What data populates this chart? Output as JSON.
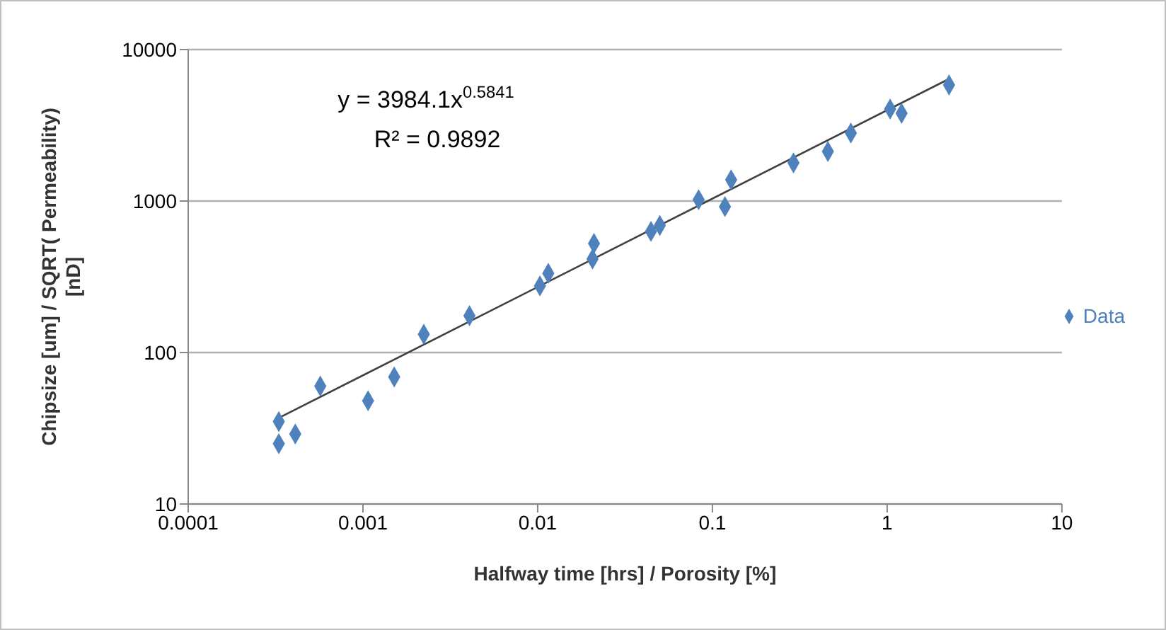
{
  "chart_data": {
    "type": "scatter",
    "xlabel": "Halfway time [hrs] / Porosity [%]",
    "ylabel": "Chipsize [um] / SQRT( Permeability) [nD]",
    "log": "xy",
    "xlim": [
      0.0001,
      10
    ],
    "xticks": [
      0.0001,
      0.001,
      0.01,
      0.1,
      1,
      10
    ],
    "ylim": [
      10,
      10000
    ],
    "yticks": [
      10,
      100,
      1000,
      10000
    ],
    "grid": "y",
    "legend": "right",
    "marker": "diamond",
    "annotations": [
      "y = 3984.1x$^{0.5841}$",
      "R² = 0.9892"
    ],
    "series": [
      {
        "name": "Data",
        "color": "#4f81bd",
        "x": [
          0.00033,
          0.00033,
          0.00041,
          0.00057,
          0.00107,
          0.00151,
          0.00223,
          0.00407,
          0.0103,
          0.0115,
          0.0206,
          0.021,
          0.0445,
          0.05,
          0.0834,
          0.118,
          0.128,
          0.291,
          0.458,
          0.62,
          1.04,
          1.21,
          2.26
        ],
        "values": [
          35,
          25,
          29,
          60,
          48,
          69,
          132,
          175,
          275,
          333,
          414,
          525,
          630,
          690,
          1021,
          918,
          1380,
          1786,
          2124,
          2810,
          4045,
          3795,
          5840
        ]
      },
      {
        "type": "line",
        "color": "#404040",
        "marker": "none",
        "x": [
          0.00033,
          2.26
        ],
        "values": [
          37,
          6400
        ]
      }
    ]
  }
}
